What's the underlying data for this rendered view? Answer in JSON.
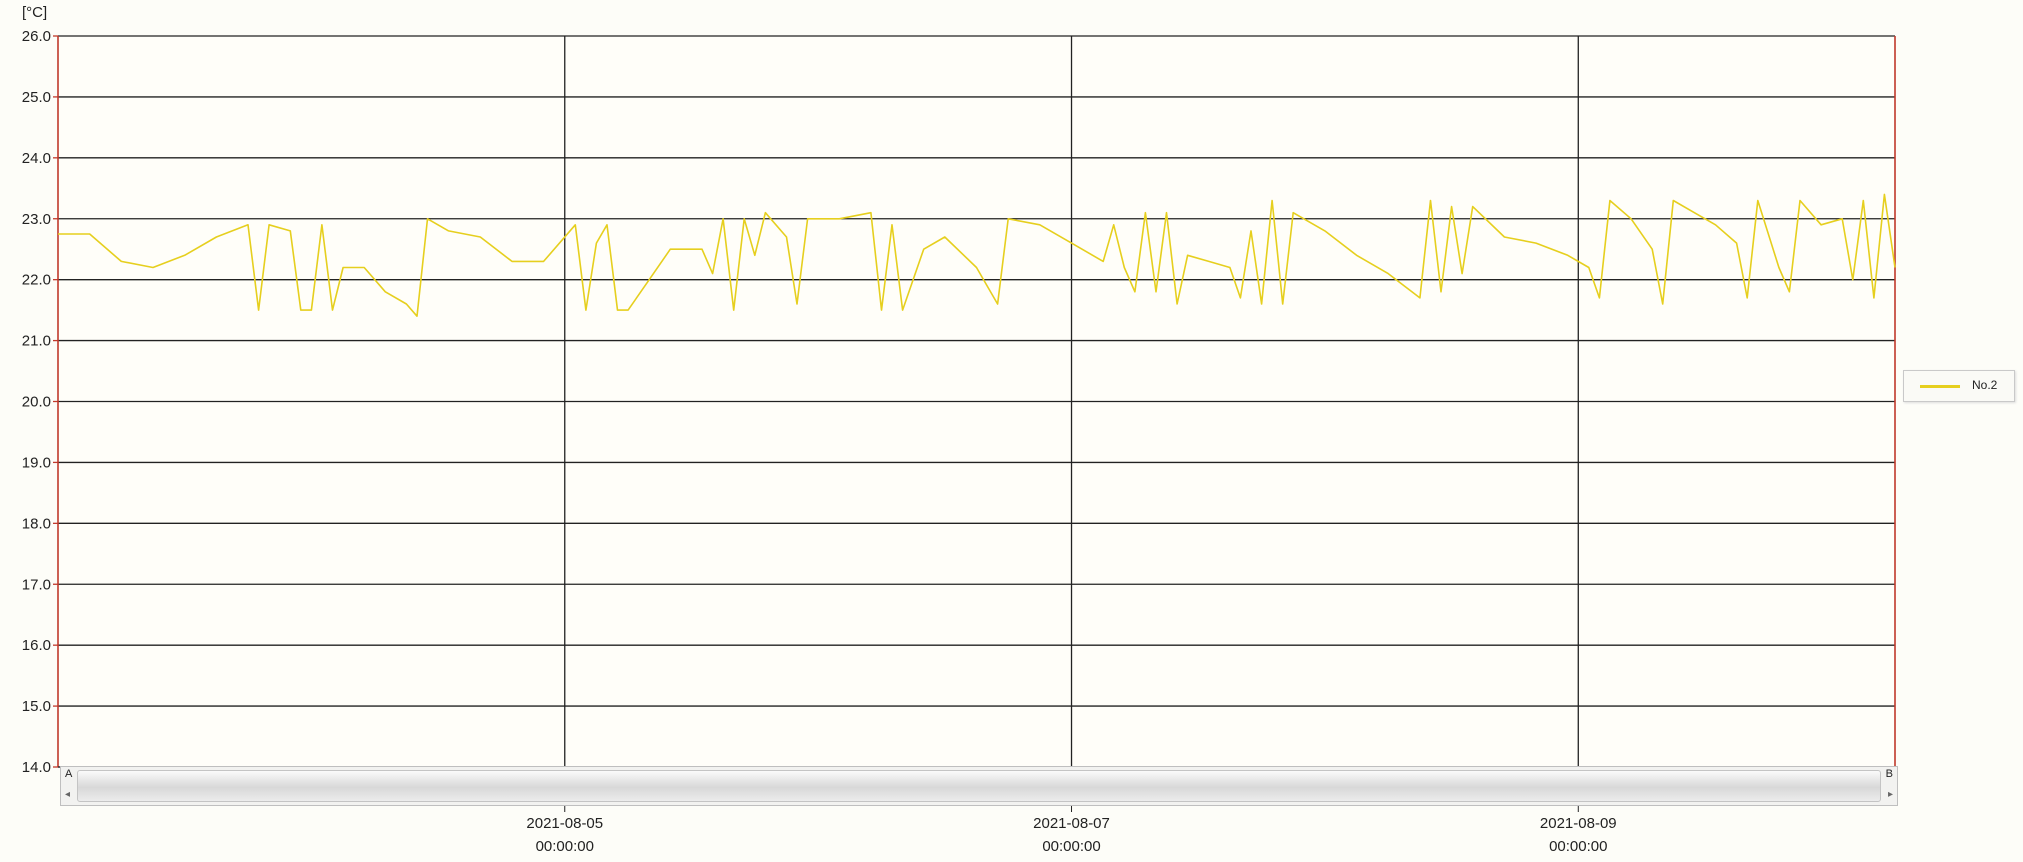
{
  "chart_data": {
    "type": "line",
    "y_unit": "[°C]",
    "ylim": [
      14.0,
      26.0
    ],
    "y_ticks": [
      "14.0",
      "15.0",
      "16.0",
      "17.0",
      "18.0",
      "19.0",
      "20.0",
      "21.0",
      "22.0",
      "23.0",
      "24.0",
      "25.0",
      "26.0"
    ],
    "x_range": [
      "2021-08-03 00:00:00",
      "2021-08-10 06:00:00"
    ],
    "x_ticks": [
      {
        "date": "2021-08-05",
        "time": "00:00:00",
        "x": "2021-08-05 00:00:00"
      },
      {
        "date": "2021-08-07",
        "time": "00:00:00",
        "x": "2021-08-07 00:00:00"
      },
      {
        "date": "2021-08-09",
        "time": "00:00:00",
        "x": "2021-08-09 00:00:00"
      }
    ],
    "grid": true,
    "legend_position": "right",
    "series": [
      {
        "name": "No.2",
        "color": "#e6cf1e",
        "points": [
          [
            "2021-08-03 00:00:00",
            22.75
          ],
          [
            "2021-08-03 03:00:00",
            22.75
          ],
          [
            "2021-08-03 06:00:00",
            22.3
          ],
          [
            "2021-08-03 09:00:00",
            22.2
          ],
          [
            "2021-08-03 12:00:00",
            22.4
          ],
          [
            "2021-08-03 15:00:00",
            22.7
          ],
          [
            "2021-08-03 18:00:00",
            22.9
          ],
          [
            "2021-08-03 19:00:00",
            21.5
          ],
          [
            "2021-08-03 20:00:00",
            22.9
          ],
          [
            "2021-08-03 22:00:00",
            22.8
          ],
          [
            "2021-08-03 23:00:00",
            21.5
          ],
          [
            "2021-08-04 00:00:00",
            21.5
          ],
          [
            "2021-08-04 01:00:00",
            22.9
          ],
          [
            "2021-08-04 02:00:00",
            21.5
          ],
          [
            "2021-08-04 03:00:00",
            22.2
          ],
          [
            "2021-08-04 05:00:00",
            22.2
          ],
          [
            "2021-08-04 07:00:00",
            21.8
          ],
          [
            "2021-08-04 09:00:00",
            21.6
          ],
          [
            "2021-08-04 10:00:00",
            21.4
          ],
          [
            "2021-08-04 11:00:00",
            23.0
          ],
          [
            "2021-08-04 13:00:00",
            22.8
          ],
          [
            "2021-08-04 16:00:00",
            22.7
          ],
          [
            "2021-08-04 19:00:00",
            22.3
          ],
          [
            "2021-08-04 22:00:00",
            22.3
          ],
          [
            "2021-08-05 01:00:00",
            22.9
          ],
          [
            "2021-08-05 02:00:00",
            21.5
          ],
          [
            "2021-08-05 03:00:00",
            22.6
          ],
          [
            "2021-08-05 04:00:00",
            22.9
          ],
          [
            "2021-08-05 05:00:00",
            21.5
          ],
          [
            "2021-08-05 06:00:00",
            21.5
          ],
          [
            "2021-08-05 08:00:00",
            22.0
          ],
          [
            "2021-08-05 10:00:00",
            22.5
          ],
          [
            "2021-08-05 13:00:00",
            22.5
          ],
          [
            "2021-08-05 14:00:00",
            22.1
          ],
          [
            "2021-08-05 15:00:00",
            23.0
          ],
          [
            "2021-08-05 16:00:00",
            21.5
          ],
          [
            "2021-08-05 17:00:00",
            23.0
          ],
          [
            "2021-08-05 18:00:00",
            22.4
          ],
          [
            "2021-08-05 19:00:00",
            23.1
          ],
          [
            "2021-08-05 21:00:00",
            22.7
          ],
          [
            "2021-08-05 22:00:00",
            21.6
          ],
          [
            "2021-08-05 23:00:00",
            23.0
          ],
          [
            "2021-08-06 02:00:00",
            23.0
          ],
          [
            "2021-08-06 05:00:00",
            23.1
          ],
          [
            "2021-08-06 06:00:00",
            21.5
          ],
          [
            "2021-08-06 07:00:00",
            22.9
          ],
          [
            "2021-08-06 08:00:00",
            21.5
          ],
          [
            "2021-08-06 10:00:00",
            22.5
          ],
          [
            "2021-08-06 12:00:00",
            22.7
          ],
          [
            "2021-08-06 15:00:00",
            22.2
          ],
          [
            "2021-08-06 17:00:00",
            21.6
          ],
          [
            "2021-08-06 18:00:00",
            23.0
          ],
          [
            "2021-08-06 21:00:00",
            22.9
          ],
          [
            "2021-08-07 00:00:00",
            22.6
          ],
          [
            "2021-08-07 03:00:00",
            22.3
          ],
          [
            "2021-08-07 04:00:00",
            22.9
          ],
          [
            "2021-08-07 05:00:00",
            22.2
          ],
          [
            "2021-08-07 06:00:00",
            21.8
          ],
          [
            "2021-08-07 07:00:00",
            23.1
          ],
          [
            "2021-08-07 08:00:00",
            21.8
          ],
          [
            "2021-08-07 09:00:00",
            23.1
          ],
          [
            "2021-08-07 10:00:00",
            21.6
          ],
          [
            "2021-08-07 11:00:00",
            22.4
          ],
          [
            "2021-08-07 13:00:00",
            22.3
          ],
          [
            "2021-08-07 15:00:00",
            22.2
          ],
          [
            "2021-08-07 16:00:00",
            21.7
          ],
          [
            "2021-08-07 17:00:00",
            22.8
          ],
          [
            "2021-08-07 18:00:00",
            21.6
          ],
          [
            "2021-08-07 19:00:00",
            23.3
          ],
          [
            "2021-08-07 20:00:00",
            21.6
          ],
          [
            "2021-08-07 21:00:00",
            23.1
          ],
          [
            "2021-08-08 00:00:00",
            22.8
          ],
          [
            "2021-08-08 03:00:00",
            22.4
          ],
          [
            "2021-08-08 06:00:00",
            22.1
          ],
          [
            "2021-08-08 09:00:00",
            21.7
          ],
          [
            "2021-08-08 10:00:00",
            23.3
          ],
          [
            "2021-08-08 11:00:00",
            21.8
          ],
          [
            "2021-08-08 12:00:00",
            23.2
          ],
          [
            "2021-08-08 13:00:00",
            22.1
          ],
          [
            "2021-08-08 14:00:00",
            23.2
          ],
          [
            "2021-08-08 17:00:00",
            22.7
          ],
          [
            "2021-08-08 20:00:00",
            22.6
          ],
          [
            "2021-08-08 23:00:00",
            22.4
          ],
          [
            "2021-08-09 01:00:00",
            22.2
          ],
          [
            "2021-08-09 02:00:00",
            21.7
          ],
          [
            "2021-08-09 03:00:00",
            23.3
          ],
          [
            "2021-08-09 05:00:00",
            23.0
          ],
          [
            "2021-08-09 07:00:00",
            22.5
          ],
          [
            "2021-08-09 08:00:00",
            21.6
          ],
          [
            "2021-08-09 09:00:00",
            23.3
          ],
          [
            "2021-08-09 11:00:00",
            23.1
          ],
          [
            "2021-08-09 13:00:00",
            22.9
          ],
          [
            "2021-08-09 15:00:00",
            22.6
          ],
          [
            "2021-08-09 16:00:00",
            21.7
          ],
          [
            "2021-08-09 17:00:00",
            23.3
          ],
          [
            "2021-08-09 19:00:00",
            22.2
          ],
          [
            "2021-08-09 20:00:00",
            21.8
          ],
          [
            "2021-08-09 21:00:00",
            23.3
          ],
          [
            "2021-08-09 23:00:00",
            22.9
          ],
          [
            "2021-08-10 01:00:00",
            23.0
          ],
          [
            "2021-08-10 02:00:00",
            22.0
          ],
          [
            "2021-08-10 03:00:00",
            23.3
          ],
          [
            "2021-08-10 04:00:00",
            21.7
          ],
          [
            "2021-08-10 05:00:00",
            23.4
          ],
          [
            "2021-08-10 06:00:00",
            22.2
          ]
        ]
      }
    ]
  },
  "scrollbar": {
    "left_marker": "A",
    "right_marker": "B"
  }
}
